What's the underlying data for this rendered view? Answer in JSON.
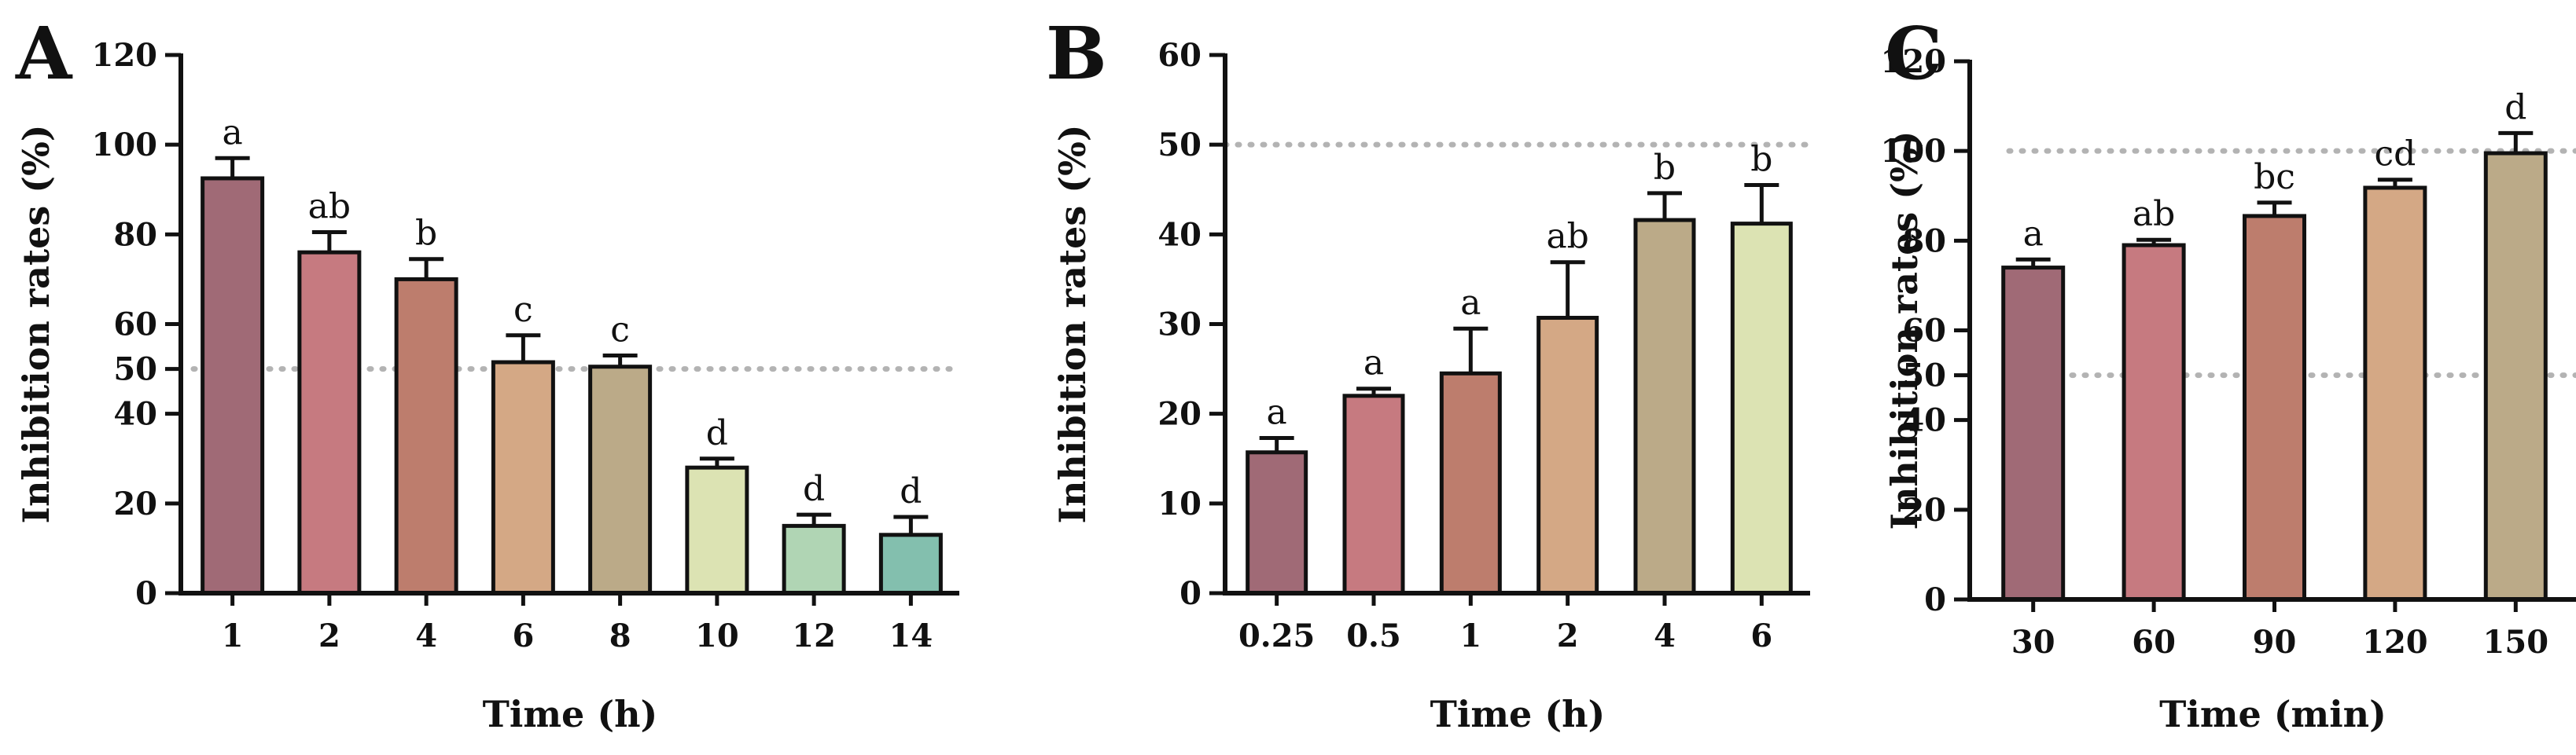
{
  "chart_data": [
    {
      "panel": "A",
      "type": "bar",
      "xlabel": "Time (h)",
      "ylabel": "Inhibition rates (%)",
      "ylim": [
        0,
        120
      ],
      "yticks": [
        "0",
        "20",
        "40",
        "50",
        "60",
        "80",
        "100",
        "120"
      ],
      "reference_lines": [
        50
      ],
      "categories": [
        "1",
        "2",
        "4",
        "6",
        "8",
        "10",
        "12",
        "14"
      ],
      "values": [
        92.5,
        76,
        70,
        51.5,
        50.5,
        28,
        15,
        13
      ],
      "errors": [
        4.5,
        4.5,
        4.5,
        6,
        2.5,
        2,
        2.5,
        4
      ],
      "significance": [
        "a",
        "ab",
        "b",
        "c",
        "c",
        "d",
        "d",
        "d"
      ],
      "colors": [
        "#a06a76",
        "#c67a80",
        "#bd7d6d",
        "#d4a885",
        "#bbaa88",
        "#dce3b3",
        "#b0d5b4",
        "#83bfae"
      ]
    },
    {
      "panel": "B",
      "type": "bar",
      "xlabel": "Time (h)",
      "ylabel": "Inhibition rates (%)",
      "ylim": [
        0,
        60
      ],
      "yticks": [
        "0",
        "10",
        "20",
        "30",
        "40",
        "50",
        "60"
      ],
      "reference_lines": [
        50
      ],
      "categories": [
        "0.25",
        "0.5",
        "1",
        "2",
        "4",
        "6"
      ],
      "values": [
        15.7,
        22,
        24.5,
        30.7,
        41.6,
        41.2
      ],
      "errors": [
        1.6,
        0.8,
        5,
        6.2,
        3,
        4.3
      ],
      "significance": [
        "a",
        "a",
        "a",
        "ab",
        "b",
        "b"
      ],
      "colors": [
        "#a06a76",
        "#c67a80",
        "#bd7d6d",
        "#d4a885",
        "#bbaa88",
        "#dce3b3"
      ]
    },
    {
      "panel": "C",
      "type": "bar",
      "xlabel": "Time (min)",
      "ylabel": "Inhibition rates (%)",
      "ylim": [
        0,
        120
      ],
      "yticks": [
        "0",
        "20",
        "40",
        "50",
        "60",
        "80",
        "100",
        "120"
      ],
      "reference_lines": [
        50,
        100
      ],
      "categories": [
        "30",
        "60",
        "90",
        "120",
        "150"
      ],
      "values": [
        74,
        79,
        85.5,
        91.8,
        99.5
      ],
      "errors": [
        1.8,
        1.2,
        3,
        1.8,
        4.5
      ],
      "significance": [
        "a",
        "ab",
        "bc",
        "cd",
        "d"
      ],
      "colors": [
        "#a06a76",
        "#c67a80",
        "#bd7d6d",
        "#d4a885",
        "#bbaa88"
      ]
    }
  ]
}
